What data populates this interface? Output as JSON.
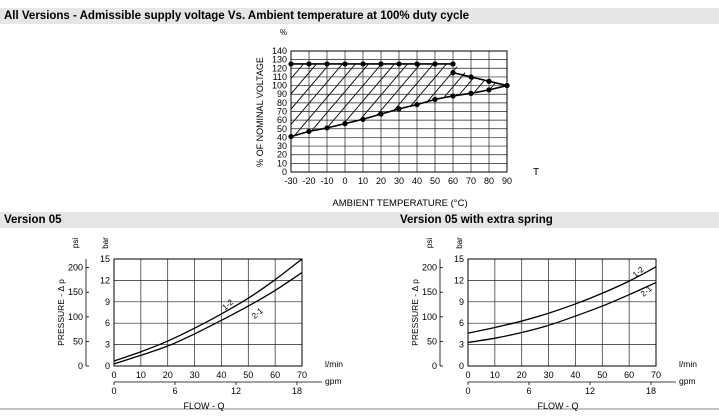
{
  "sections": {
    "top_title": "All Versions - Admissible supply voltage Vs. Ambient temperature at 100% duty cycle",
    "left_title": "Version 05",
    "right_title": "Version 05 with extra spring"
  },
  "chart_data": [
    {
      "type": "area",
      "title": "All Versions - Admissible supply voltage Vs. Ambient temperature at 100% duty cycle",
      "xlabel": "AMBIENT TEMPERATURE (°C)",
      "ylabel": "% OF NOMINAL VOLTAGE",
      "y_unit": "%",
      "x_end_symbol": "T",
      "xlim": [
        -30,
        90
      ],
      "ylim": [
        0,
        140
      ],
      "x_ticks": [
        -30,
        -20,
        -10,
        0,
        10,
        20,
        30,
        40,
        50,
        60,
        70,
        80,
        90
      ],
      "y_ticks": [
        0,
        10,
        20,
        30,
        40,
        50,
        60,
        70,
        80,
        90,
        100,
        110,
        120,
        130,
        140
      ],
      "grid": true,
      "hatched_region": true,
      "series": [
        {
          "x": [
            -30,
            -20,
            -10,
            0,
            10,
            20,
            30,
            40,
            50,
            60
          ],
          "y": [
            125,
            125,
            125,
            125,
            125,
            125,
            125,
            125,
            125,
            125
          ]
        },
        {
          "x": [
            60,
            70,
            80,
            90
          ],
          "y": [
            115,
            110,
            105,
            100
          ]
        },
        {
          "x": [
            -30,
            -20,
            -10,
            0,
            10,
            20,
            30,
            40,
            50,
            60,
            70,
            80,
            90
          ],
          "y": [
            41,
            47,
            51,
            56,
            61,
            67,
            73,
            78,
            84,
            88,
            91,
            95,
            100
          ]
        }
      ]
    },
    {
      "type": "line",
      "title": "Version 05",
      "xlabel": "FLOW - Q",
      "ylabel": "PRESSURE - Δ p",
      "x_unit": "l/min",
      "x2_unit": "gpm",
      "y_unit": "bar",
      "y2_unit": "psi",
      "xlim": [
        0,
        70
      ],
      "ylim": [
        0,
        15
      ],
      "x_ticks": [
        0,
        10,
        20,
        30,
        40,
        50,
        60,
        70
      ],
      "x2_ticks": [
        0,
        6,
        12,
        18
      ],
      "y_ticks": [
        0,
        3,
        6,
        9,
        12,
        15
      ],
      "y2_ticks": [
        0,
        50,
        100,
        150,
        200
      ],
      "grid": true,
      "series": [
        {
          "name": "1-2",
          "x": [
            0,
            10,
            20,
            30,
            40,
            50,
            60,
            70
          ],
          "y": [
            0.7,
            2.0,
            3.5,
            5.3,
            7.3,
            9.5,
            12.1,
            15.0
          ]
        },
        {
          "name": "2-1",
          "x": [
            0,
            10,
            20,
            30,
            40,
            50,
            60,
            70
          ],
          "y": [
            0.3,
            1.5,
            2.8,
            4.5,
            6.4,
            8.4,
            10.6,
            13.1
          ]
        }
      ]
    },
    {
      "type": "line",
      "title": "Version 05 with extra spring",
      "xlabel": "FLOW - Q",
      "ylabel": "PRESSURE - Δ p",
      "x_unit": "l/min",
      "x2_unit": "gpm",
      "y_unit": "bar",
      "y2_unit": "psi",
      "xlim": [
        0,
        70
      ],
      "ylim": [
        0,
        15
      ],
      "x_ticks": [
        0,
        10,
        20,
        30,
        40,
        50,
        60,
        70
      ],
      "x2_ticks": [
        0,
        6,
        12,
        18
      ],
      "y_ticks": [
        0,
        3,
        6,
        9,
        12,
        15
      ],
      "y2_ticks": [
        0,
        50,
        100,
        150,
        200
      ],
      "grid": true,
      "series": [
        {
          "name": "1-2",
          "x": [
            0,
            10,
            20,
            30,
            40,
            50,
            60,
            70
          ],
          "y": [
            4.6,
            5.4,
            6.3,
            7.4,
            8.7,
            10.2,
            11.9,
            13.9
          ]
        },
        {
          "name": "2-1",
          "x": [
            0,
            10,
            20,
            30,
            40,
            50,
            60,
            70
          ],
          "y": [
            3.3,
            3.9,
            4.7,
            5.7,
            7.0,
            8.4,
            10.0,
            11.7
          ]
        }
      ]
    }
  ]
}
